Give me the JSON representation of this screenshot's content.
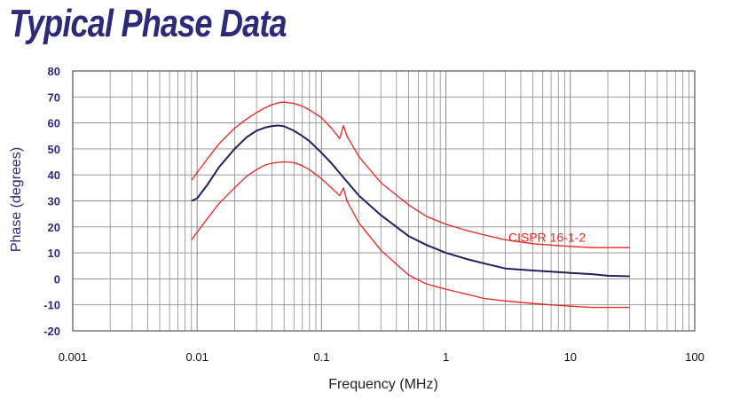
{
  "page": {
    "title": "Typical Phase Data"
  },
  "colors": {
    "title": "#2d2a7a",
    "phase_curve": "#232060",
    "limit_curves": "#e8241c",
    "grid": "#8c8c8c",
    "y_tick_labels": "#2d2a7a"
  },
  "chart_data": {
    "type": "line",
    "title": "Typical Phase Data",
    "xlabel": "Frequency (MHz)",
    "ylabel": "Phase (degrees)",
    "x_scale": "log",
    "xlim": [
      0.001,
      100
    ],
    "ylim": [
      -20,
      80
    ],
    "x_ticks": [
      "0.001",
      "0.01",
      "0.1",
      "1",
      "10",
      "100"
    ],
    "y_ticks": [
      "-20",
      "-10",
      "0",
      "10",
      "20",
      "30",
      "40",
      "50",
      "60",
      "70",
      "80"
    ],
    "grid": true,
    "annotations": [
      {
        "text": "CISPR 16-1-2",
        "x": 6.5,
        "y": 16
      }
    ],
    "series": [
      {
        "color": "#232060",
        "x": [
          0.009,
          0.01,
          0.012,
          0.015,
          0.02,
          0.025,
          0.03,
          0.035,
          0.04,
          0.045,
          0.05,
          0.06,
          0.07,
          0.08,
          0.1,
          0.12,
          0.15,
          0.2,
          0.3,
          0.5,
          0.7,
          1,
          1.5,
          2,
          3,
          5,
          7,
          10,
          15,
          20,
          30
        ],
        "y": [
          30,
          31,
          36,
          43,
          50,
          54.5,
          57,
          58.2,
          58.8,
          59,
          58.7,
          57,
          55,
          53,
          48.5,
          44.5,
          39,
          32,
          24.5,
          16.5,
          13,
          10,
          7.5,
          6,
          4,
          3.2,
          2.8,
          2.3,
          1.8,
          1.2,
          1
        ]
      },
      {
        "color": "#e8241c",
        "x": [
          0.009,
          0.012,
          0.015,
          0.02,
          0.025,
          0.03,
          0.035,
          0.04,
          0.045,
          0.05,
          0.06,
          0.07,
          0.08,
          0.1,
          0.12,
          0.14,
          0.15,
          0.16,
          0.2,
          0.3,
          0.5,
          0.7,
          1,
          1.5,
          2,
          3,
          5,
          7,
          10,
          15,
          20,
          30
        ],
        "y": [
          38,
          46,
          52,
          58,
          61.5,
          64,
          65.8,
          67,
          67.8,
          68,
          67.5,
          66.5,
          65,
          62,
          58,
          54,
          59,
          55,
          47,
          37,
          28.5,
          24,
          21,
          18.5,
          17,
          15,
          13.5,
          13,
          12.5,
          12,
          12,
          12
        ]
      },
      {
        "color": "#e8241c",
        "x": [
          0.009,
          0.012,
          0.015,
          0.02,
          0.025,
          0.03,
          0.035,
          0.04,
          0.045,
          0.05,
          0.06,
          0.07,
          0.08,
          0.1,
          0.12,
          0.14,
          0.15,
          0.16,
          0.2,
          0.3,
          0.5,
          0.7,
          1,
          1.5,
          2,
          3,
          5,
          7,
          10,
          15,
          20,
          30
        ],
        "y": [
          15,
          23,
          29,
          35,
          39.5,
          42,
          43.8,
          44.5,
          44.8,
          45,
          44.7,
          43.5,
          42,
          38.5,
          35,
          32,
          35,
          30,
          21.5,
          11,
          1.5,
          -2,
          -4,
          -6,
          -7.5,
          -8.5,
          -9.5,
          -10,
          -10.5,
          -11,
          -11,
          -11
        ]
      }
    ]
  }
}
